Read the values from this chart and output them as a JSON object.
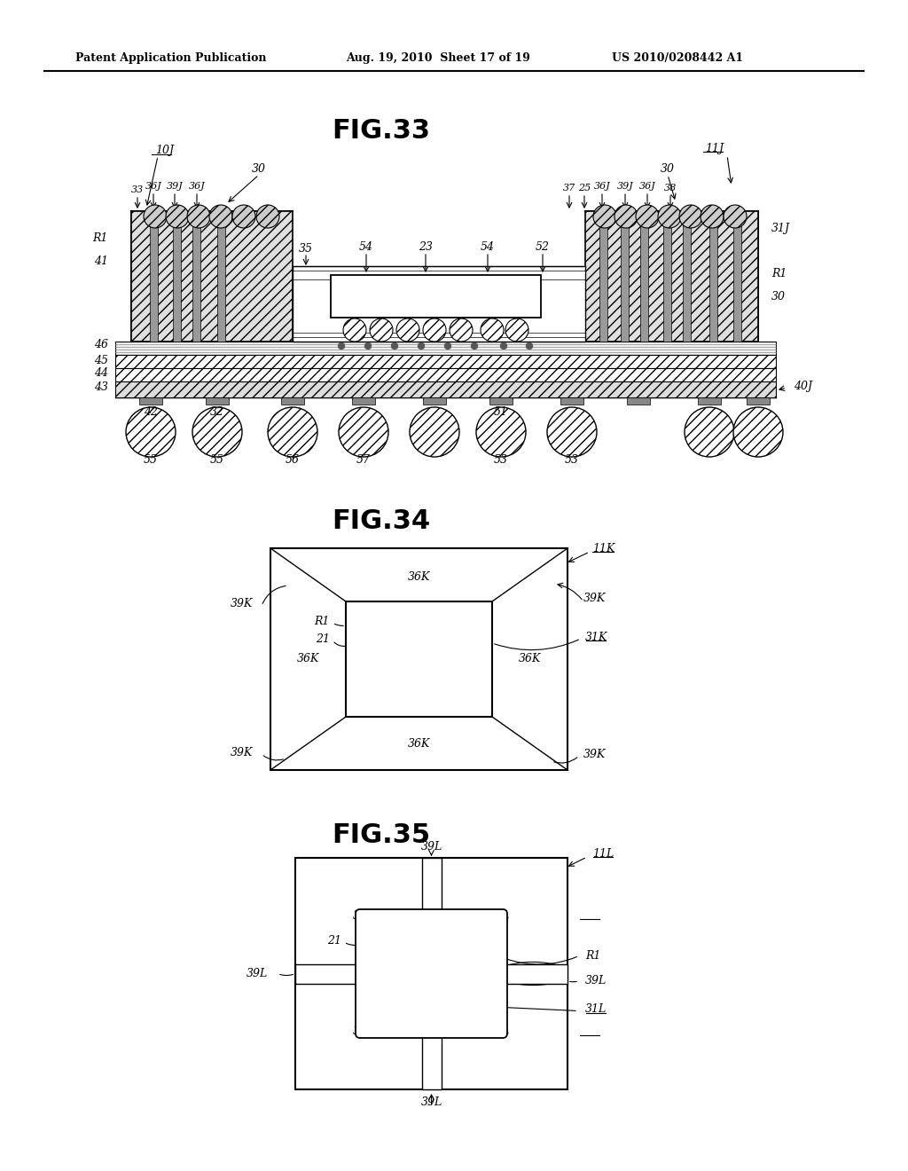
{
  "header_left": "Patent Application Publication",
  "header_mid": "Aug. 19, 2010  Sheet 17 of 19",
  "header_right": "US 2010/0208442 A1",
  "fig33_title": "FIG.33",
  "fig34_title": "FIG.34",
  "fig35_title": "FIG.35",
  "bg_color": "#ffffff",
  "line_color": "#000000"
}
